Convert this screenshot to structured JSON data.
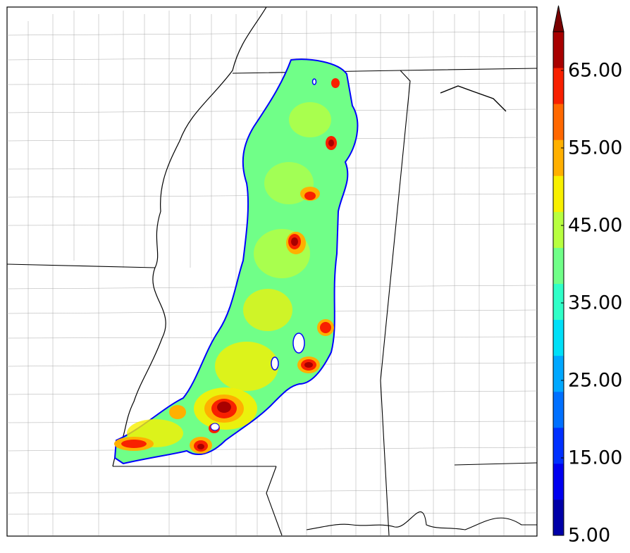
{
  "colorbar": {
    "labels": [
      "5.00",
      "15.00",
      "25.00",
      "35.00",
      "45.00",
      "55.00",
      "65.00"
    ],
    "label_values": [
      5,
      15,
      25,
      35,
      45,
      55,
      65
    ],
    "min": 5,
    "max": 70,
    "extend": "max",
    "colors": [
      "#0000a8",
      "#0000f0",
      "#0030ff",
      "#0070ff",
      "#00a8ff",
      "#00e0f8",
      "#30ffc8",
      "#70ff88",
      "#b8ff40",
      "#f8f000",
      "#ffb000",
      "#ff6800",
      "#f82000",
      "#a80000"
    ],
    "extend_color": "#7a0000"
  },
  "map": {
    "field_colors": {
      "outline": "#0000ff",
      "background_fill": "#70ff88",
      "secondary_fill": "#b8ff40",
      "yellow": "#f8f000",
      "orange": "#ffb000",
      "red": "#f82000",
      "dark_red": "#a80000"
    }
  }
}
